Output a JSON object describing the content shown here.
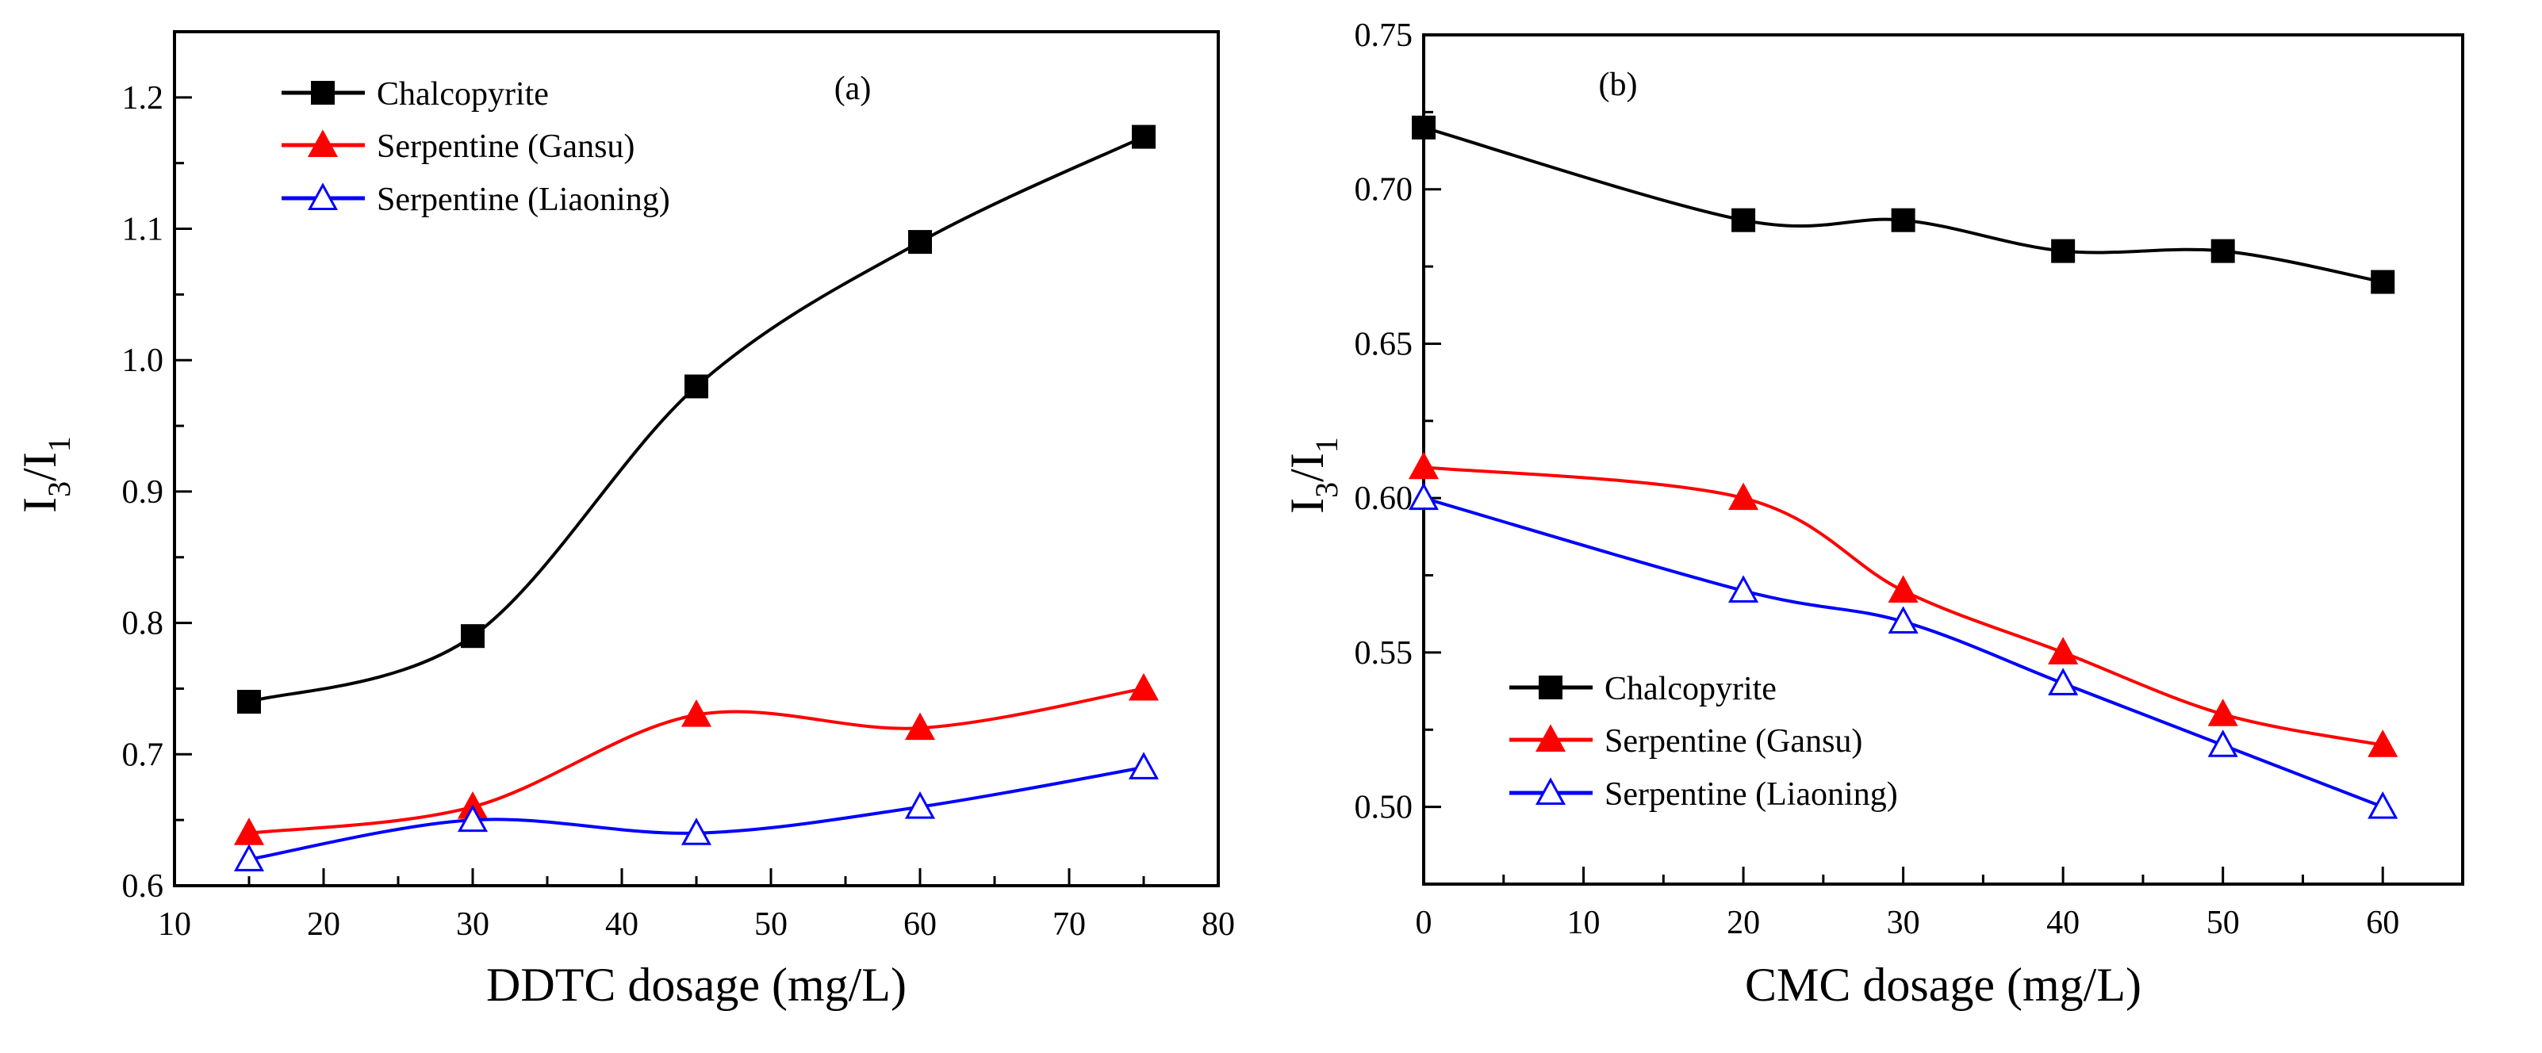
{
  "chart_data": [
    {
      "type": "line",
      "panel_label": "(a)",
      "xlabel": "DDTC dosage (mg/L)",
      "ylabel": {
        "main1": "I",
        "sub1": "3",
        "slash": "/",
        "main2": "I",
        "sub2": "1"
      },
      "xlim": [
        10,
        80
      ],
      "ylim": [
        0.6,
        1.25
      ],
      "xticks": [
        "10",
        "20",
        "30",
        "40",
        "50",
        "60",
        "70",
        "80"
      ],
      "xtick_values": [
        10,
        20,
        30,
        40,
        50,
        60,
        70,
        80
      ],
      "yticks": [
        "0.6",
        "0.7",
        "0.8",
        "0.9",
        "1.0",
        "1.1",
        "1.2"
      ],
      "ytick_values": [
        0.6,
        0.7,
        0.8,
        0.9,
        1.0,
        1.1,
        1.2
      ],
      "legend_position": "top-left",
      "x": [
        15,
        30,
        45,
        60,
        75
      ],
      "series": [
        {
          "name": "Chalcopyrite",
          "color": "#000000",
          "marker": "square-filled",
          "values": [
            0.74,
            0.79,
            0.98,
            1.09,
            1.17
          ]
        },
        {
          "name": "Serpentine (Gansu)",
          "color": "#ff0000",
          "marker": "triangle-filled",
          "values": [
            0.64,
            0.66,
            0.73,
            0.72,
            0.75
          ]
        },
        {
          "name": "Serpentine (Liaoning)",
          "color": "#0000ff",
          "marker": "triangle-open",
          "values": [
            0.62,
            0.65,
            0.64,
            0.66,
            0.69
          ]
        }
      ]
    },
    {
      "type": "line",
      "panel_label": "(b)",
      "xlabel": "CMC dosage (mg/L)",
      "ylabel": {
        "main1": "I",
        "sub1": "3",
        "slash": "/",
        "main2": "I",
        "sub2": "1"
      },
      "xlim": [
        0,
        65
      ],
      "ylim": [
        0.475,
        0.75
      ],
      "xticks": [
        "0",
        "10",
        "20",
        "30",
        "40",
        "50",
        "60"
      ],
      "xtick_values": [
        0,
        10,
        20,
        30,
        40,
        50,
        60
      ],
      "yticks": [
        "0.50",
        "0.55",
        "0.60",
        "0.65",
        "0.70",
        "0.75"
      ],
      "ytick_values": [
        0.5,
        0.55,
        0.6,
        0.65,
        0.7,
        0.75
      ],
      "legend_position": "bottom-left",
      "x": [
        0,
        20,
        30,
        40,
        50,
        60
      ],
      "series": [
        {
          "name": "Chalcopyrite",
          "color": "#000000",
          "marker": "square-filled",
          "values": [
            0.72,
            0.69,
            0.69,
            0.68,
            0.68,
            0.67
          ]
        },
        {
          "name": "Serpentine (Gansu)",
          "color": "#ff0000",
          "marker": "triangle-filled",
          "values": [
            0.61,
            0.6,
            0.57,
            0.55,
            0.53,
            0.52
          ]
        },
        {
          "name": "Serpentine (Liaoning)",
          "color": "#0000ff",
          "marker": "triangle-open",
          "values": [
            0.6,
            0.57,
            0.56,
            0.54,
            0.52,
            0.5
          ]
        }
      ]
    }
  ]
}
